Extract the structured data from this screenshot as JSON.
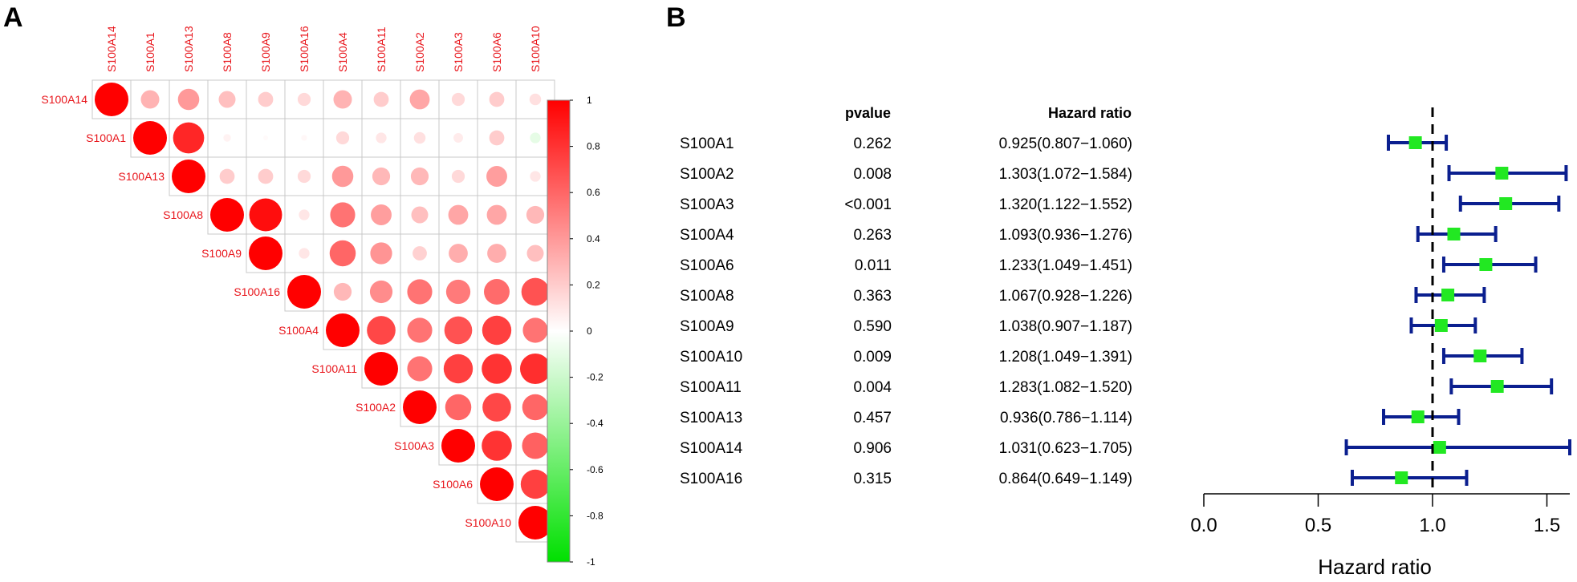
{
  "panels": {
    "a_label": "A",
    "b_label": "B"
  },
  "colors": {
    "positive": "#ff0000",
    "negative": "#00e000",
    "grid": "#c8c8c8",
    "label": "#e8151b",
    "ci_line": "#0b1f8f",
    "point": "#22e822"
  },
  "chart_data": [
    {
      "type": "heatmap",
      "subtype": "correlation-circle-upper",
      "genes": [
        "S100A14",
        "S100A1",
        "S100A13",
        "S100A8",
        "S100A9",
        "S100A16",
        "S100A4",
        "S100A11",
        "S100A2",
        "S100A3",
        "S100A6",
        "S100A10"
      ],
      "matrix": [
        [
          1.0,
          0.3,
          0.4,
          0.25,
          0.2,
          0.15,
          0.3,
          0.2,
          0.35,
          0.15,
          0.2,
          0.12
        ],
        [
          null,
          1.0,
          0.85,
          0.05,
          0.02,
          0.03,
          0.15,
          0.1,
          0.12,
          0.08,
          0.2,
          -0.1
        ],
        [
          null,
          null,
          1.0,
          0.2,
          0.2,
          0.15,
          0.4,
          0.28,
          0.28,
          0.15,
          0.38,
          0.1
        ],
        [
          null,
          null,
          null,
          1.0,
          0.95,
          0.1,
          0.55,
          0.38,
          0.25,
          0.35,
          0.35,
          0.28
        ],
        [
          null,
          null,
          null,
          null,
          1.0,
          0.1,
          0.6,
          0.42,
          0.18,
          0.32,
          0.32,
          0.25
        ],
        [
          null,
          null,
          null,
          null,
          null,
          1.0,
          0.28,
          0.45,
          0.55,
          0.52,
          0.58,
          0.68
        ],
        [
          null,
          null,
          null,
          null,
          null,
          null,
          1.0,
          0.72,
          0.55,
          0.68,
          0.75,
          0.55
        ],
        [
          null,
          null,
          null,
          null,
          null,
          null,
          null,
          1.0,
          0.55,
          0.75,
          0.8,
          0.82
        ],
        [
          null,
          null,
          null,
          null,
          null,
          null,
          null,
          null,
          1.0,
          0.6,
          0.72,
          0.6
        ],
        [
          null,
          null,
          null,
          null,
          null,
          null,
          null,
          null,
          null,
          1.0,
          0.8,
          0.62
        ],
        [
          null,
          null,
          null,
          null,
          null,
          null,
          null,
          null,
          null,
          null,
          1.0,
          0.75
        ],
        [
          null,
          null,
          null,
          null,
          null,
          null,
          null,
          null,
          null,
          null,
          null,
          1.0
        ]
      ],
      "colorbar": {
        "range": [
          -1,
          1
        ],
        "ticks": [
          1,
          0.8,
          0.6,
          0.4,
          0.2,
          0,
          -0.2,
          -0.4,
          -0.6,
          -0.8,
          -1
        ]
      }
    },
    {
      "type": "forest",
      "col_pvalue": "pvalue",
      "col_hr": "Hazard ratio",
      "xlabel": "Hazard ratio",
      "xlim": [
        0.0,
        1.6
      ],
      "xticks": [
        "0.0",
        "0.5",
        "1.0",
        "1.5"
      ],
      "ref_line": 1.0,
      "rows": [
        {
          "gene": "S100A1",
          "pvalue": "0.262",
          "hr_text": "0.925(0.807−1.060)",
          "hr": 0.925,
          "lo": 0.807,
          "hi": 1.06
        },
        {
          "gene": "S100A2",
          "pvalue": "0.008",
          "hr_text": "1.303(1.072−1.584)",
          "hr": 1.303,
          "lo": 1.072,
          "hi": 1.584
        },
        {
          "gene": "S100A3",
          "pvalue": "<0.001",
          "hr_text": "1.320(1.122−1.552)",
          "hr": 1.32,
          "lo": 1.122,
          "hi": 1.552
        },
        {
          "gene": "S100A4",
          "pvalue": "0.263",
          "hr_text": "1.093(0.936−1.276)",
          "hr": 1.093,
          "lo": 0.936,
          "hi": 1.276
        },
        {
          "gene": "S100A6",
          "pvalue": "0.011",
          "hr_text": "1.233(1.049−1.451)",
          "hr": 1.233,
          "lo": 1.049,
          "hi": 1.451
        },
        {
          "gene": "S100A8",
          "pvalue": "0.363",
          "hr_text": "1.067(0.928−1.226)",
          "hr": 1.067,
          "lo": 0.928,
          "hi": 1.226
        },
        {
          "gene": "S100A9",
          "pvalue": "0.590",
          "hr_text": "1.038(0.907−1.187)",
          "hr": 1.038,
          "lo": 0.907,
          "hi": 1.187
        },
        {
          "gene": "S100A10",
          "pvalue": "0.009",
          "hr_text": "1.208(1.049−1.391)",
          "hr": 1.208,
          "lo": 1.049,
          "hi": 1.391
        },
        {
          "gene": "S100A11",
          "pvalue": "0.004",
          "hr_text": "1.283(1.082−1.520)",
          "hr": 1.283,
          "lo": 1.082,
          "hi": 1.52
        },
        {
          "gene": "S100A13",
          "pvalue": "0.457",
          "hr_text": "0.936(0.786−1.114)",
          "hr": 0.936,
          "lo": 0.786,
          "hi": 1.114
        },
        {
          "gene": "S100A14",
          "pvalue": "0.906",
          "hr_text": "1.031(0.623−1.705)",
          "hr": 1.031,
          "lo": 0.623,
          "hi": 1.705
        },
        {
          "gene": "S100A16",
          "pvalue": "0.315",
          "hr_text": "0.864(0.649−1.149)",
          "hr": 0.864,
          "lo": 0.649,
          "hi": 1.149
        }
      ]
    }
  ]
}
